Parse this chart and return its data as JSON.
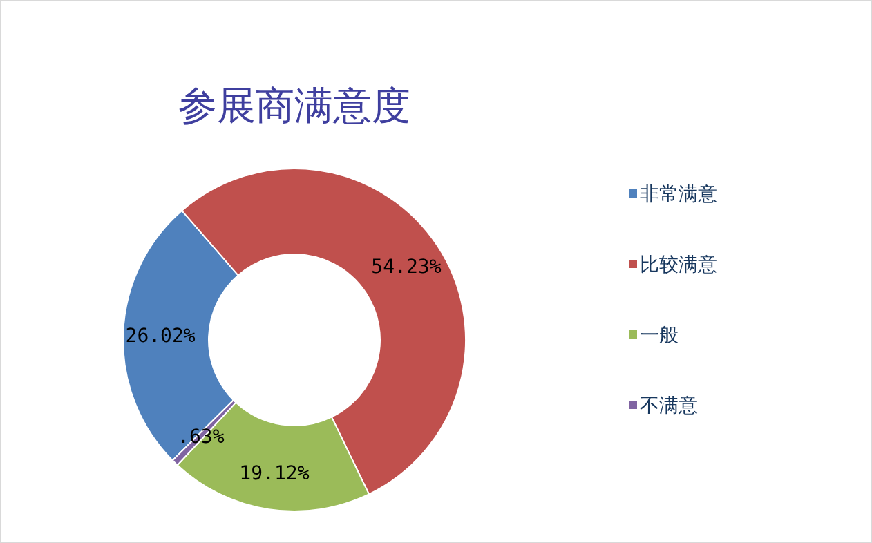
{
  "chart_data": {
    "type": "donut",
    "title": "参展商满意度",
    "categories": [
      "非常满意",
      "比较满意",
      "一般",
      "不满意"
    ],
    "values": [
      26.02,
      54.23,
      19.12,
      0.63
    ],
    "colors": [
      "#4f81bd",
      "#c0504d",
      "#9bbb59",
      "#8064a2"
    ],
    "value_labels": [
      "26.02%",
      "54.23%",
      "19.12%",
      ".63%"
    ],
    "legend": "right"
  }
}
